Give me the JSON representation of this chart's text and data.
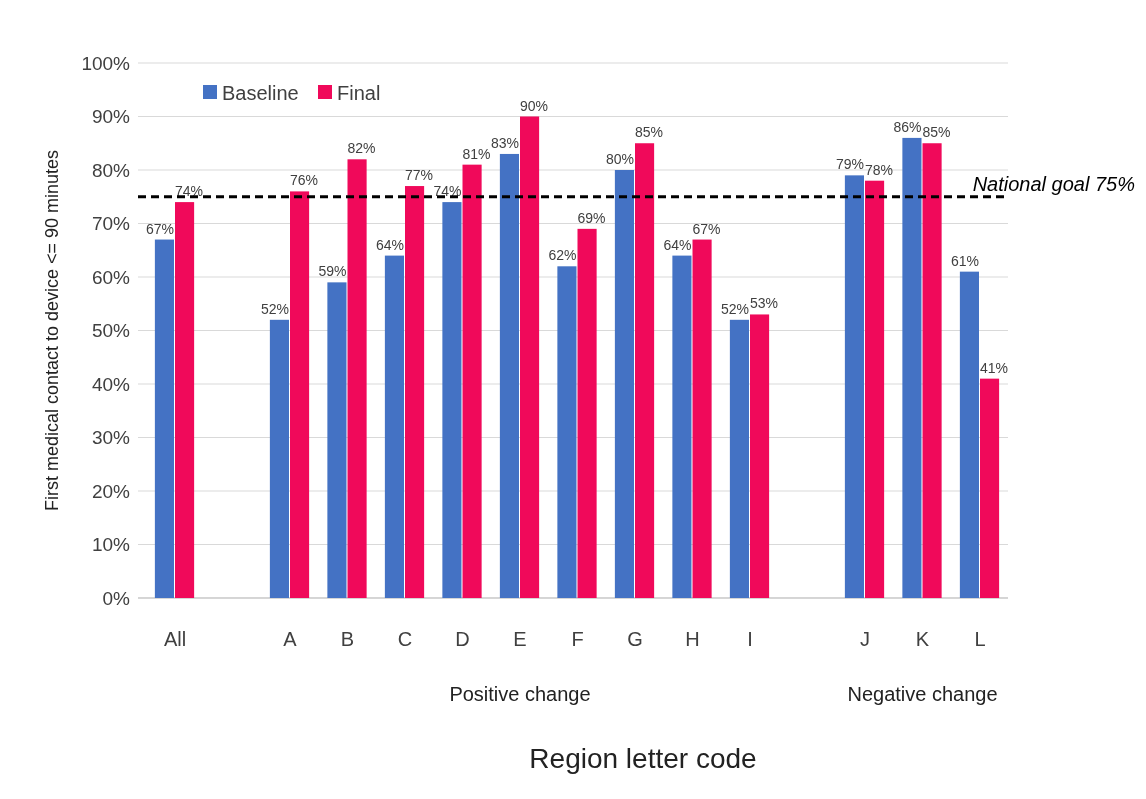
{
  "chart_data": {
    "type": "bar",
    "xlabel": "Region letter code",
    "ylabel": "First medical contact to device <= 90 minutes",
    "categories": [
      "All",
      null,
      "A",
      "B",
      "C",
      "D",
      "E",
      "F",
      "G",
      "H",
      "I",
      null,
      "J",
      "K",
      "L"
    ],
    "series": [
      {
        "name": "Baseline",
        "color": "#4472c4",
        "values": [
          67,
          null,
          52,
          59,
          64,
          74,
          83,
          62,
          80,
          64,
          52,
          null,
          79,
          86,
          61
        ],
        "value_labels": [
          "67%",
          null,
          "52%",
          "59%",
          "64%",
          "74%",
          "83%",
          "62%",
          "80%",
          "64%",
          "52%",
          null,
          "79%",
          "86%",
          "61%"
        ]
      },
      {
        "name": "Final",
        "color": "#f0095a",
        "values": [
          74,
          null,
          76,
          82,
          77,
          81,
          90,
          69,
          85,
          67,
          53,
          null,
          78,
          85,
          41
        ],
        "value_labels": [
          "74%",
          null,
          "76%",
          "82%",
          "77%",
          "81%",
          "90%",
          "69%",
          "85%",
          "67%",
          "53%",
          null,
          "78%",
          "85%",
          "41%"
        ]
      }
    ],
    "ylim": [
      0,
      100
    ],
    "yticks": [
      {
        "value": 0,
        "label": "0%"
      },
      {
        "value": 10,
        "label": "10%"
      },
      {
        "value": 20,
        "label": "20%"
      },
      {
        "value": 30,
        "label": "30%"
      },
      {
        "value": 40,
        "label": "40%"
      },
      {
        "value": 50,
        "label": "50%"
      },
      {
        "value": 60,
        "label": "60%"
      },
      {
        "value": 70,
        "label": "70%"
      },
      {
        "value": 80,
        "label": "80%"
      },
      {
        "value": 90,
        "label": "90%"
      },
      {
        "value": 100,
        "label": "100%"
      }
    ],
    "grid": "y",
    "legend": "top left",
    "ref_lines": [
      {
        "axis": "y",
        "value": 75,
        "label": "National goal 75%",
        "color": "#000000",
        "line_style": "dashed"
      }
    ],
    "annotations": [
      "Positive change",
      "Negative change"
    ]
  }
}
